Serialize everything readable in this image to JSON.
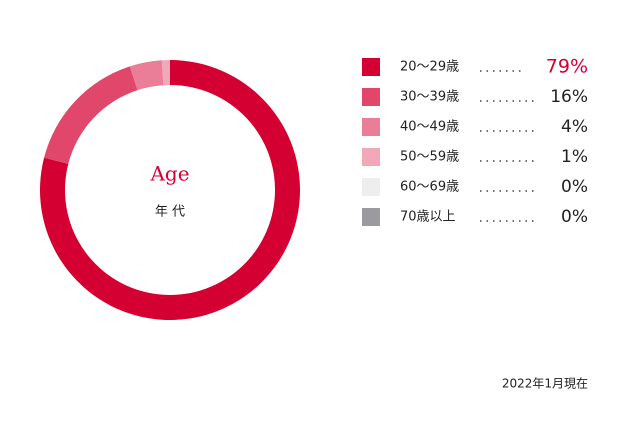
{
  "chart_data": {
    "type": "donut",
    "center_title": "Age",
    "center_subtitle": "年 代",
    "categories": [
      "20〜29歳",
      "30〜39歳",
      "40〜49歳",
      "50〜59歳",
      "60〜69歳",
      "70歳以上"
    ],
    "values": [
      79,
      16,
      4,
      1,
      0,
      0
    ],
    "value_labels": [
      "79%",
      "16%",
      "4%",
      "1%",
      "0%",
      "0%"
    ],
    "colors": [
      "#d50032",
      "#e0476a",
      "#ea7d97",
      "#f1a9ba",
      "#eeeeee",
      "#9b9b9f"
    ],
    "note": "2022年1月現在"
  }
}
